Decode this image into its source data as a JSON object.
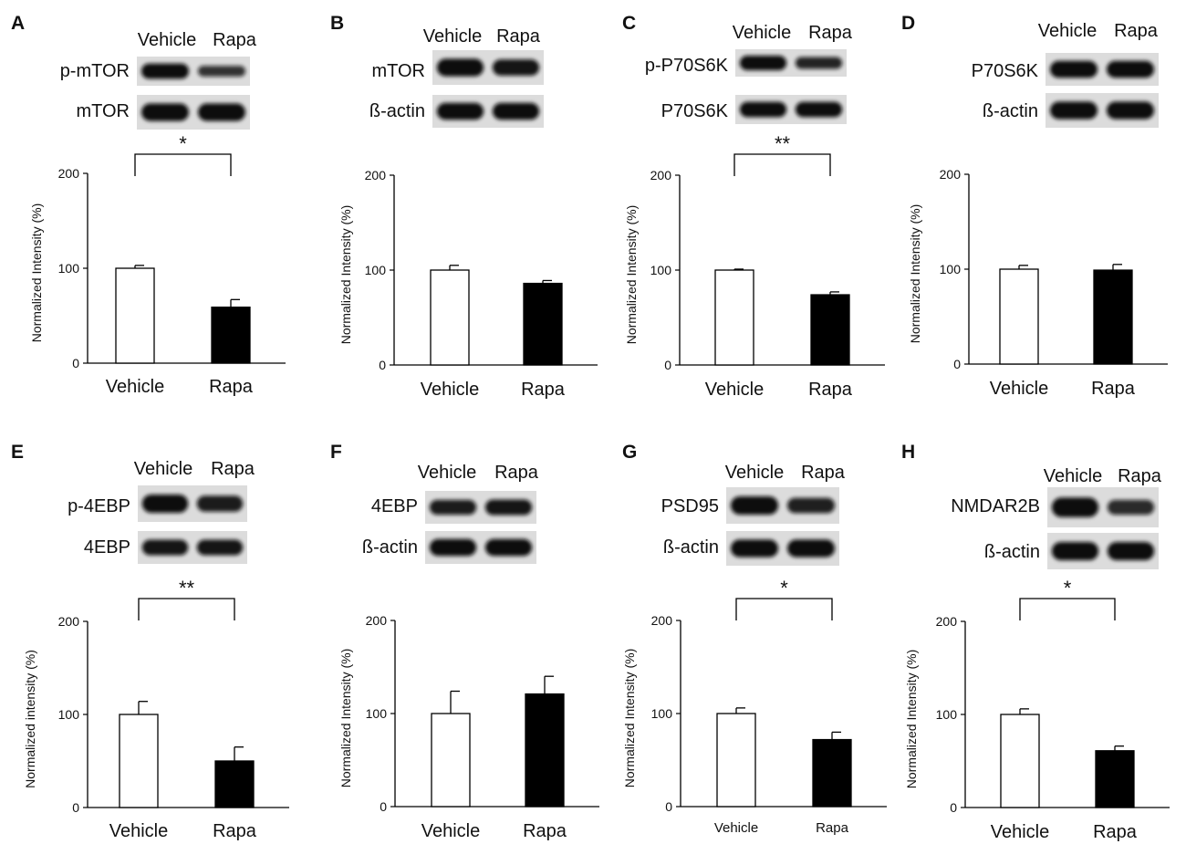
{
  "panels": [
    {
      "label": "A",
      "lanes": [
        "Vehicle",
        "Rapa"
      ],
      "blots": [
        {
          "protein": "p-mTOR",
          "bands": [
            1.0,
            0.6
          ]
        },
        {
          "protein": "mTOR",
          "bands": [
            1.0,
            1.0
          ]
        }
      ],
      "significance": "*",
      "chart_data": {
        "type": "bar",
        "categories": [
          "Vehicle",
          "Rapa"
        ],
        "values": [
          100,
          59
        ],
        "errors": [
          3,
          8
        ],
        "ylabel": "Normalized Intensity (%)",
        "ylim": [
          0,
          200
        ],
        "yticks": [
          "0",
          "100",
          "200"
        ],
        "bar_colors": [
          "#ffffff",
          "#000000"
        ]
      }
    },
    {
      "label": "B",
      "lanes": [
        "Vehicle",
        "Rapa"
      ],
      "blots": [
        {
          "protein": "mTOR",
          "bands": [
            1.0,
            0.9
          ]
        },
        {
          "protein": "ß-actin",
          "bands": [
            1.0,
            1.0
          ]
        }
      ],
      "significance": "",
      "chart_data": {
        "type": "bar",
        "categories": [
          "Vehicle",
          "Rapa"
        ],
        "values": [
          100,
          86
        ],
        "errors": [
          5,
          3
        ],
        "ylabel": "Normalized Intensity (%)",
        "ylim": [
          0,
          200
        ],
        "yticks": [
          "0",
          "100",
          "200"
        ],
        "bar_colors": [
          "#ffffff",
          "#000000"
        ]
      }
    },
    {
      "label": "C",
      "lanes": [
        "Vehicle",
        "Rapa"
      ],
      "blots": [
        {
          "protein": "p-P70S6K",
          "bands": [
            1.0,
            0.75
          ]
        },
        {
          "protein": "P70S6K",
          "bands": [
            1.0,
            1.0
          ]
        }
      ],
      "significance": "**",
      "chart_data": {
        "type": "bar",
        "categories": [
          "Vehicle",
          "Rapa"
        ],
        "values": [
          100,
          74
        ],
        "errors": [
          1,
          3
        ],
        "ylabel": "Normalized Intensity (%)",
        "ylim": [
          0,
          200
        ],
        "yticks": [
          "0",
          "100",
          "200"
        ],
        "bar_colors": [
          "#ffffff",
          "#000000"
        ]
      }
    },
    {
      "label": "D",
      "lanes": [
        "Vehicle",
        "Rapa"
      ],
      "blots": [
        {
          "protein": "P70S6K",
          "bands": [
            1.0,
            1.0
          ]
        },
        {
          "protein": "ß-actin",
          "bands": [
            1.0,
            1.0
          ]
        }
      ],
      "significance": "",
      "chart_data": {
        "type": "bar",
        "categories": [
          "Vehicle",
          "Rapa"
        ],
        "values": [
          100,
          99
        ],
        "errors": [
          4,
          6
        ],
        "ylabel": "Normalized Intensity (%)",
        "ylim": [
          0,
          200
        ],
        "yticks": [
          "0",
          "100",
          "200"
        ],
        "bar_colors": [
          "#ffffff",
          "#000000"
        ]
      }
    },
    {
      "label": "E",
      "lanes": [
        "Vehicle",
        "Rapa"
      ],
      "blots": [
        {
          "protein": "p-4EBP",
          "bands": [
            1.0,
            0.85
          ]
        },
        {
          "protein": "4EBP",
          "bands": [
            0.9,
            0.9
          ]
        }
      ],
      "significance": "**",
      "chart_data": {
        "type": "bar",
        "categories": [
          "Vehicle",
          "Rapa"
        ],
        "values": [
          100,
          50
        ],
        "errors": [
          14,
          15
        ],
        "ylabel": "Normalized intensity (%)",
        "ylim": [
          0,
          200
        ],
        "yticks": [
          "0",
          "100",
          "200"
        ],
        "bar_colors": [
          "#ffffff",
          "#000000"
        ]
      }
    },
    {
      "label": "F",
      "lanes": [
        "Vehicle",
        "Rapa"
      ],
      "blots": [
        {
          "protein": "4EBP",
          "bands": [
            0.85,
            0.9
          ]
        },
        {
          "protein": "ß-actin",
          "bands": [
            1.0,
            1.0
          ]
        }
      ],
      "significance": "",
      "chart_data": {
        "type": "bar",
        "categories": [
          "Vehicle",
          "Rapa"
        ],
        "values": [
          100,
          121
        ],
        "errors": [
          24,
          19
        ],
        "ylabel": "Normalized Intensity (%)",
        "ylim": [
          0,
          200
        ],
        "yticks": [
          "0",
          "100",
          "200"
        ],
        "bar_colors": [
          "#ffffff",
          "#000000"
        ]
      }
    },
    {
      "label": "G",
      "lanes": [
        "Vehicle",
        "Rapa"
      ],
      "blots": [
        {
          "protein": "PSD95",
          "bands": [
            1.0,
            0.8
          ]
        },
        {
          "protein": "ß-actin",
          "bands": [
            1.0,
            1.0
          ]
        }
      ],
      "significance": "*",
      "chart_data": {
        "type": "bar",
        "categories": [
          "Vehicle",
          "Rapa"
        ],
        "values": [
          100,
          72
        ],
        "errors": [
          6,
          8
        ],
        "ylabel": "Normalized Intensity (%)",
        "ylim": [
          0,
          200
        ],
        "yticks": [
          "0",
          "100",
          "200"
        ],
        "bar_colors": [
          "#ffffff",
          "#000000"
        ]
      }
    },
    {
      "label": "H",
      "lanes": [
        "Vehicle",
        "Rapa"
      ],
      "blots": [
        {
          "protein": "NMDAR2B",
          "bands": [
            1.0,
            0.7
          ]
        },
        {
          "protein": "ß-actin",
          "bands": [
            1.0,
            1.0
          ]
        }
      ],
      "significance": "*",
      "chart_data": {
        "type": "bar",
        "categories": [
          "Vehicle",
          "Rapa"
        ],
        "values": [
          100,
          61
        ],
        "errors": [
          6,
          5
        ],
        "ylabel": "Normalized Intensity (%)",
        "ylim": [
          0,
          200
        ],
        "yticks": [
          "0",
          "100",
          "200"
        ],
        "bar_colors": [
          "#ffffff",
          "#000000"
        ]
      }
    }
  ]
}
